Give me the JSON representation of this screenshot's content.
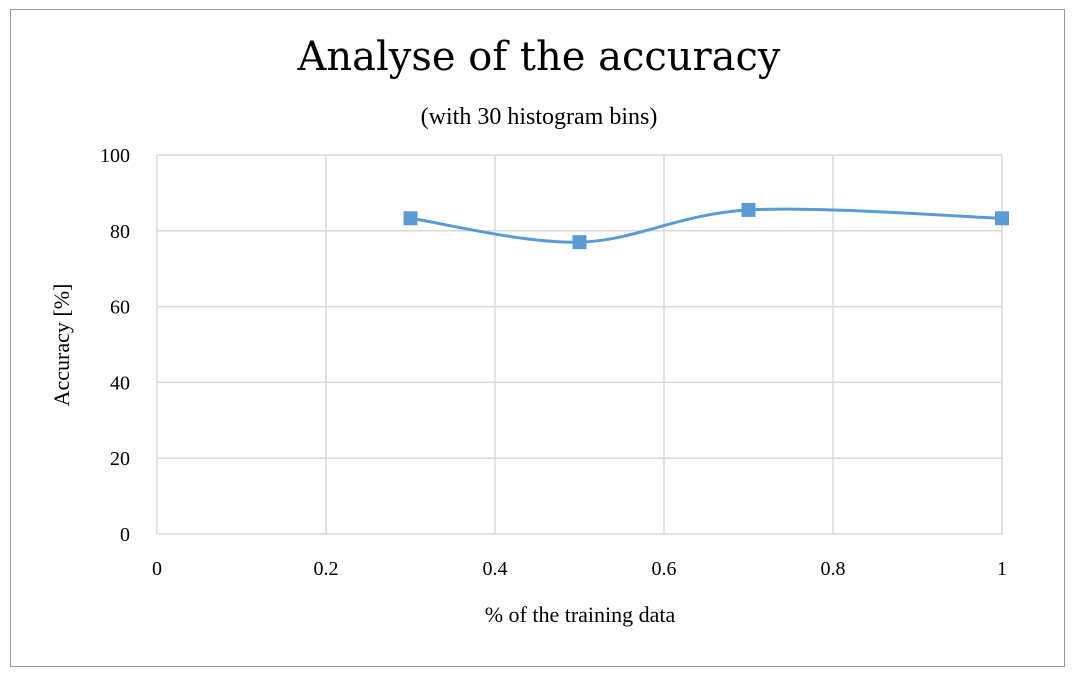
{
  "chart_data": {
    "type": "line",
    "title": "Analyse of the accuracy",
    "subtitle": "(with 30 histogram bins)",
    "xlabel": "% of the training data",
    "ylabel": "Accuracy [%]",
    "xlim": [
      0,
      1
    ],
    "ylim": [
      0,
      100
    ],
    "x_ticks": [
      0,
      0.2,
      0.4,
      0.6,
      0.8,
      1
    ],
    "x_tick_labels": [
      "0",
      "0.2",
      "0.4",
      "0.6",
      "0.8",
      "1"
    ],
    "y_ticks": [
      0,
      20,
      40,
      60,
      80,
      100
    ],
    "y_tick_labels": [
      "0",
      "20",
      "40",
      "60",
      "80",
      "100"
    ],
    "grid": true,
    "smooth": true,
    "series": [
      {
        "x": [
          0.3,
          0.5,
          0.7,
          1.0
        ],
        "y": [
          83.3,
          77.0,
          85.5,
          83.3
        ],
        "color": "#5B9BD5",
        "marker": "square"
      }
    ]
  }
}
